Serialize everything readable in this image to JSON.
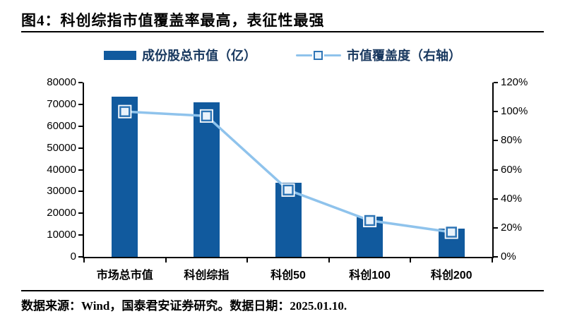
{
  "title": "图4：科创综指市值覆盖率最高，表征性最强",
  "footer": "数据来源：Wind，国泰君安证券研究。数据日期：2025.01.10.",
  "legend": [
    {
      "label": "成份股总市值（亿）",
      "type": "bar",
      "color": "#115A9E"
    },
    {
      "label": "市值覆盖度（右轴）",
      "type": "line",
      "color": "#8FC3EC"
    }
  ],
  "colors": {
    "bar": "#115A9E",
    "line": "#8FC3EC",
    "marker_fill": "#EAF3FB",
    "marker_border": "#2E75B6",
    "marker_halo": "#FFFFFF",
    "axis": "#000000",
    "legend_text": "#17375E"
  },
  "chart_data": {
    "type": "bar",
    "subtype": "bar-and-line-dual-axis",
    "categories": [
      "市场总市值",
      "科创综指",
      "科创50",
      "科创100",
      "科创200"
    ],
    "series": [
      {
        "name": "成份股总市值（亿）",
        "type": "bar",
        "axis": "left",
        "color": "#115A9E",
        "values": [
          73500,
          71000,
          34000,
          18300,
          12800
        ]
      },
      {
        "name": "市值覆盖度（右轴）",
        "type": "line",
        "axis": "right",
        "color": "#8FC3EC",
        "marker": "square",
        "values_pct": [
          100,
          97,
          46,
          25,
          17
        ]
      }
    ],
    "left_axis": {
      "min": 0,
      "max": 80000,
      "step": 10000,
      "ticks": [
        "0",
        "10000",
        "20000",
        "30000",
        "40000",
        "50000",
        "60000",
        "70000",
        "80000"
      ]
    },
    "right_axis": {
      "min": 0,
      "max": 120,
      "step": 20,
      "ticks": [
        "0%",
        "20%",
        "40%",
        "60%",
        "80%",
        "100%",
        "120%"
      ]
    },
    "grid": false,
    "legend_position": "top",
    "title": "图4：科创综指市值覆盖率最高，表征性最强"
  }
}
